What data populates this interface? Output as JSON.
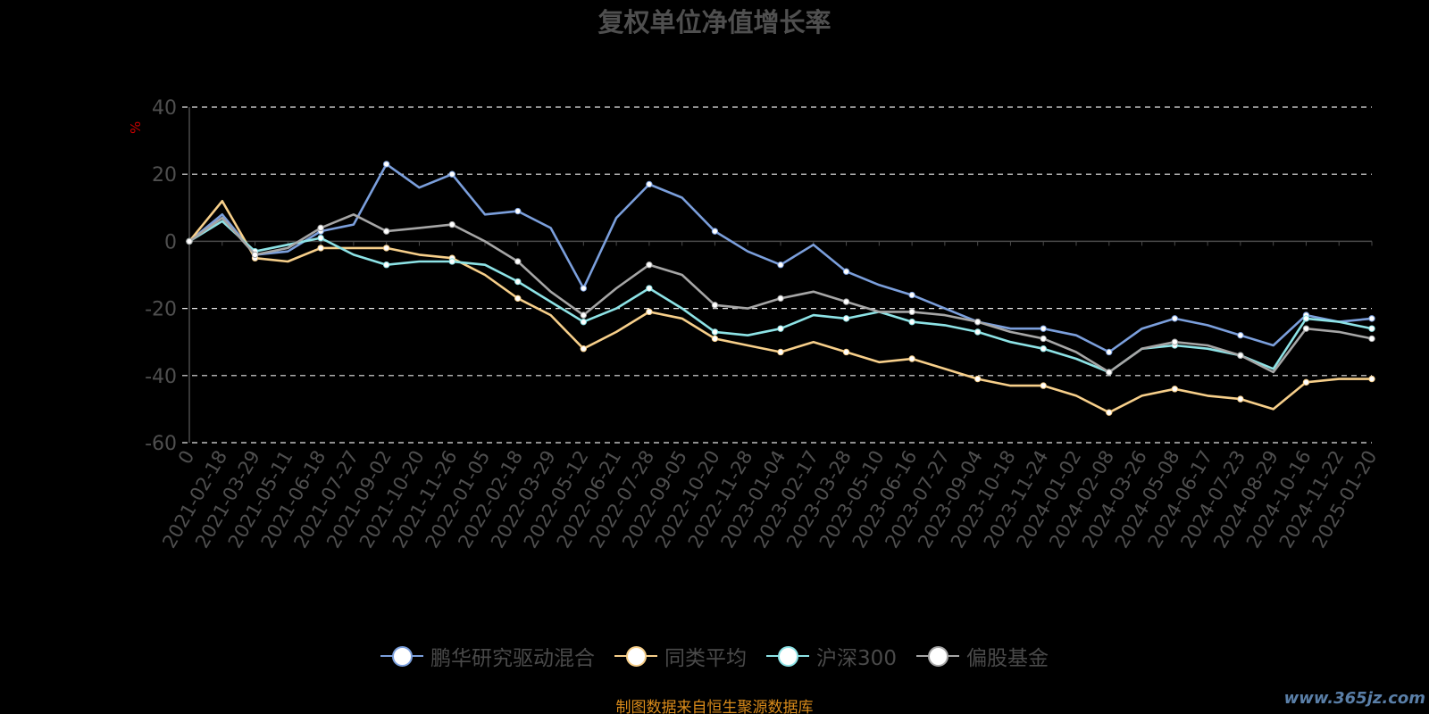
{
  "title": "复权单位净值增长率",
  "source": "制图数据来自恒生聚源数据库",
  "watermark": "www.365jz.com",
  "chart_data": {
    "type": "line",
    "title": "复权单位净值增长率",
    "ylabel": "%",
    "ylim": [
      -60,
      40
    ],
    "yticks": [
      -60,
      -40,
      -20,
      0,
      20,
      40
    ],
    "grid": true,
    "legend_position": "bottom",
    "xticks": [
      "0",
      "2021-02-18",
      "2021-03-29",
      "2021-05-11",
      "2021-06-18",
      "2021-07-27",
      "2021-09-02",
      "2021-10-20",
      "2021-11-26",
      "2022-01-05",
      "2022-02-18",
      "2022-03-29",
      "2022-05-12",
      "2022-06-21",
      "2022-07-28",
      "2022-09-05",
      "2022-10-20",
      "2022-11-28",
      "2023-01-04",
      "2023-02-17",
      "2023-03-28",
      "2023-05-10",
      "2023-06-16",
      "2023-07-27",
      "2023-09-04",
      "2023-10-18",
      "2023-11-24",
      "2024-01-02",
      "2024-02-08",
      "2024-03-26",
      "2024-05-08",
      "2024-06-17",
      "2024-07-23",
      "2024-08-29",
      "2024-10-16",
      "2024-11-22",
      "2025-01-20"
    ],
    "x": [
      "0",
      "2021-02-18",
      "2021-03-29",
      "2021-05-11",
      "2021-06-18",
      "2021-07-27",
      "2021-09-02",
      "2021-10-20",
      "2021-11-26",
      "2022-01-05",
      "2022-02-18",
      "2022-03-29",
      "2022-05-12",
      "2022-06-21",
      "2022-07-28",
      "2022-09-05",
      "2022-10-20",
      "2022-11-28",
      "2023-01-04",
      "2023-02-17",
      "2023-03-28",
      "2023-05-10",
      "2023-06-16",
      "2023-07-27",
      "2023-09-04",
      "2023-10-18",
      "2023-11-24",
      "2024-01-02",
      "2024-02-08",
      "2024-03-26",
      "2024-05-08",
      "2024-06-17",
      "2024-07-23",
      "2024-08-29",
      "2024-10-16",
      "2024-11-22",
      "2025-01-20"
    ],
    "series": [
      {
        "name": "鹏华研究驱动混合",
        "color": "#7b9fdc",
        "values": [
          0,
          8,
          -4,
          -3,
          3,
          5,
          23,
          16,
          20,
          8,
          9,
          4,
          -14,
          7,
          17,
          13,
          3,
          -3,
          -7,
          -1,
          -9,
          -13,
          -16,
          -20,
          -24,
          -26,
          -26,
          -28,
          -33,
          -26,
          -23,
          -25,
          -28,
          -31,
          -22,
          -24,
          -23
        ]
      },
      {
        "name": "同类平均",
        "color": "#f7cf8a",
        "values": [
          0,
          12,
          -5,
          -6,
          -2,
          -2,
          -2,
          -4,
          -5,
          -10,
          -17,
          -22,
          -32,
          -27,
          -21,
          -23,
          -29,
          -31,
          -33,
          -30,
          -33,
          -36,
          -35,
          -38,
          -41,
          -43,
          -43,
          -46,
          -51,
          -46,
          -44,
          -46,
          -47,
          -50,
          -42,
          -41,
          -41
        ]
      },
      {
        "name": "沪深300",
        "color": "#8de3e6",
        "values": [
          0,
          6,
          -3,
          -1,
          1,
          -4,
          -7,
          -6,
          -6,
          -7,
          -12,
          -18,
          -24,
          -20,
          -14,
          -20,
          -27,
          -28,
          -26,
          -22,
          -23,
          -21,
          -24,
          -25,
          -27,
          -30,
          -32,
          -35,
          -39,
          -32,
          -31,
          -32,
          -34,
          -38,
          -23,
          -24,
          -26
        ]
      },
      {
        "name": "偏股基金",
        "color": "#a6a6a6",
        "values": [
          0,
          7,
          -4,
          -2,
          4,
          8,
          3,
          4,
          5,
          0,
          -6,
          -15,
          -22,
          -14,
          -7,
          -10,
          -19,
          -20,
          -17,
          -15,
          -18,
          -21,
          -21,
          -22,
          -24,
          -27,
          -29,
          -33,
          -39,
          -32,
          -30,
          -31,
          -34,
          -39,
          -26,
          -27,
          -29
        ]
      }
    ]
  }
}
